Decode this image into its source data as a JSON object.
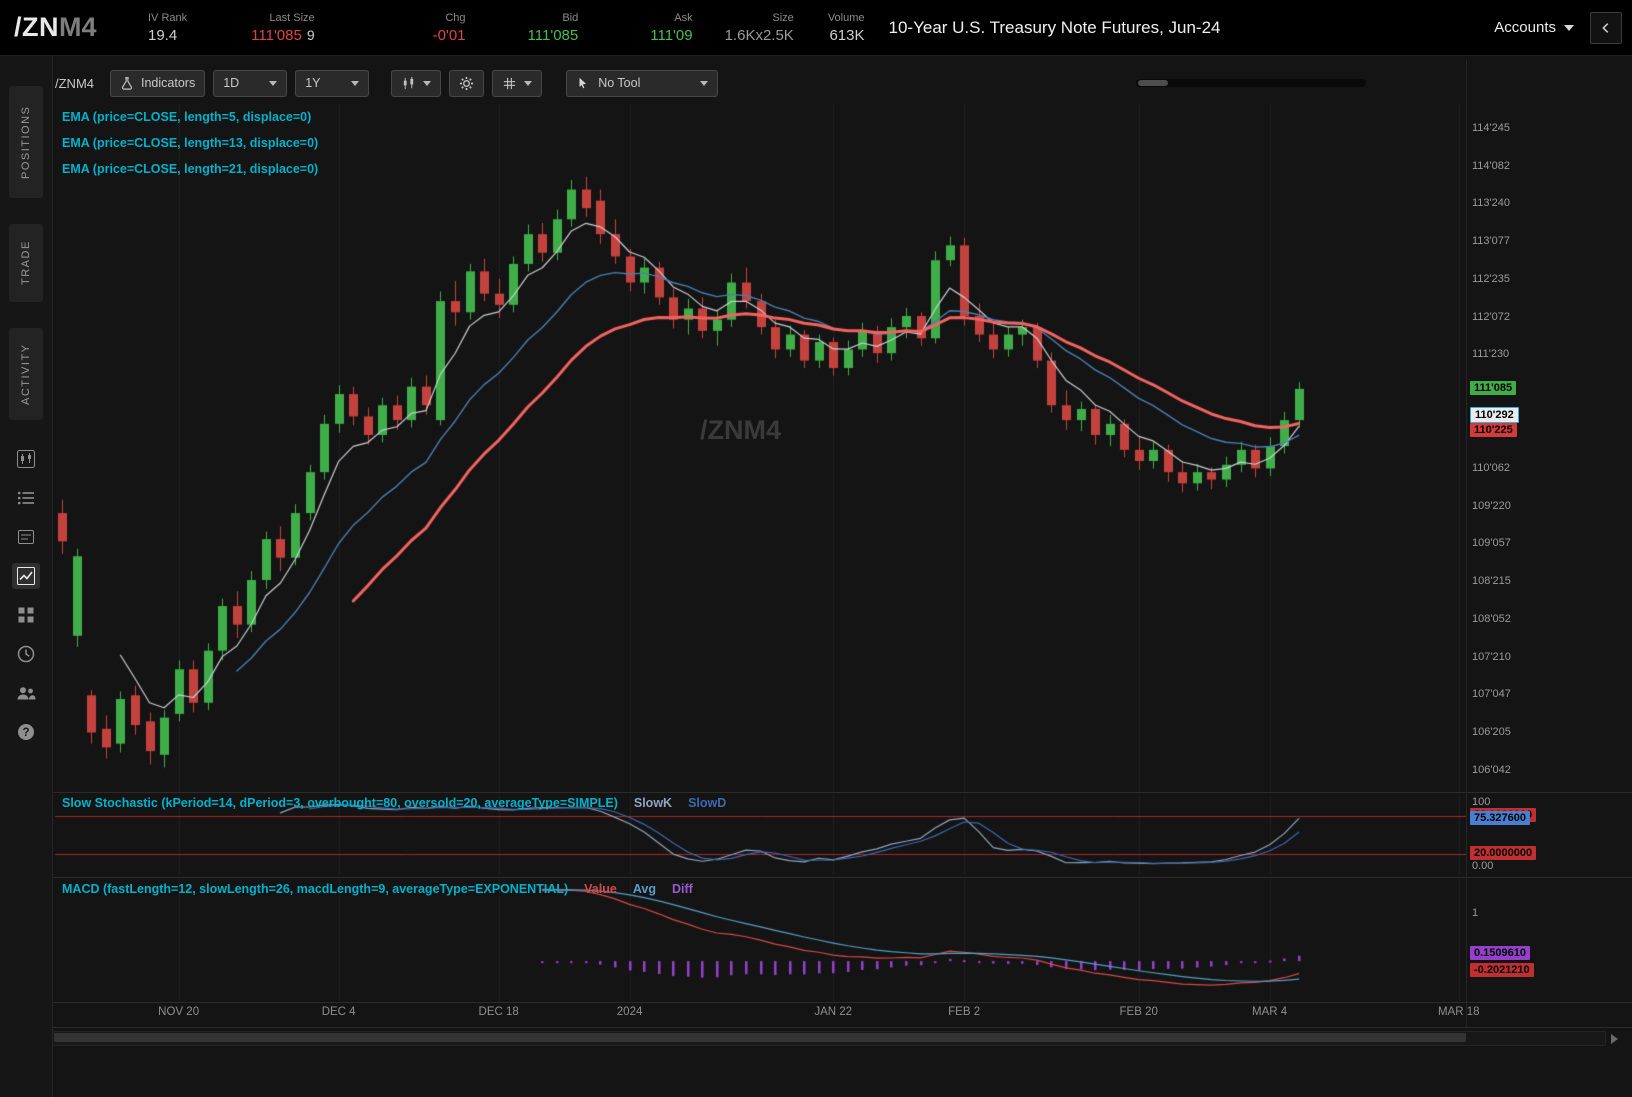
{
  "header": {
    "symbol": "/ZN",
    "symbol_suffix": "M4",
    "metrics": [
      {
        "label": "IV Rank",
        "value": "19.4",
        "color": "#cfcfcf"
      },
      {
        "label": "Last Size",
        "value": "111'085",
        "extra": "9",
        "color": "#e04545"
      },
      {
        "label": "Chg",
        "value": "-0'01",
        "color": "#e04545"
      },
      {
        "label": "Bid",
        "value": "111'085",
        "color": "#46c14e"
      },
      {
        "label": "Ask",
        "value": "111'09",
        "color": "#46c14e"
      },
      {
        "label": "Size",
        "value": "1.6Kx2.5K",
        "color": "#9a9a9a"
      },
      {
        "label": "Volume",
        "value": "613K",
        "color": "#cfcfcf"
      }
    ],
    "title": "10-Year U.S. Treasury Note Futures, Jun-24",
    "accounts_label": "Accounts"
  },
  "sidebar": {
    "tabs": [
      "POSITIONS",
      "TRADE",
      "ACTIVITY"
    ],
    "icons": [
      "chart",
      "watchlist",
      "trade-ticket",
      "active-chart",
      "apps-grid",
      "history-clock",
      "community",
      "help"
    ]
  },
  "toolbar": {
    "symbol": "/ZNM4",
    "indicators_label": "Indicators",
    "timeframe": "1D",
    "range": "1Y",
    "tool_label": "No Tool",
    "icons": [
      "flask",
      "chart-style-candles",
      "gear",
      "grid-drawings",
      "cursor"
    ]
  },
  "watermark": "/ZNM4",
  "studies": {
    "ema_labels": [
      "EMA (price=CLOSE, length=5, displace=0)",
      "EMA (price=CLOSE, length=13, displace=0)",
      "EMA (price=CLOSE, length=21, displace=0)"
    ],
    "stoch": {
      "label": "Slow Stochastic (kPeriod=14, dPeriod=3, overbought=80, oversold=20, averageType=SIMPLE)",
      "legend": [
        {
          "text": "SlowK",
          "color": "#8fa6c0"
        },
        {
          "text": "SlowD",
          "color": "#3e68b0"
        }
      ]
    },
    "macd": {
      "label": "MACD (fastLength=12, slowLength=26, macdLength=9, averageType=EXPONENTIAL)",
      "legend": [
        {
          "text": "Value",
          "color": "#d84848"
        },
        {
          "text": "Avg",
          "color": "#55a0c8"
        },
        {
          "text": "Diff",
          "color": "#9b59d0"
        }
      ]
    }
  },
  "colors": {
    "accent_cyan": "#00b2cc",
    "up_green": "#3fae49",
    "down_red": "#c4423d",
    "axis_text": "#9a9a9a"
  },
  "chart_data": {
    "type": "candlestick",
    "symbol": "/ZNM4",
    "description": "10-Year U.S. Treasury Note Futures, Jun-24, daily bars with EMA(5), EMA(13), EMA(21), Slow Stochastic and MACD",
    "up_color": "#3fae49",
    "down_color": "#c4423d",
    "total_slots": 97,
    "bars_ohlc": [
      [
        109.6,
        109.78,
        109.05,
        109.22
      ],
      [
        107.95,
        109.12,
        107.8,
        109.02
      ],
      [
        107.15,
        107.22,
        106.5,
        106.65
      ],
      [
        106.7,
        106.88,
        106.3,
        106.45
      ],
      [
        106.5,
        107.2,
        106.38,
        107.1
      ],
      [
        107.15,
        107.28,
        106.62,
        106.75
      ],
      [
        106.8,
        106.92,
        106.22,
        106.4
      ],
      [
        106.35,
        106.95,
        106.18,
        106.85
      ],
      [
        106.9,
        107.62,
        106.8,
        107.5
      ],
      [
        107.5,
        107.62,
        106.92,
        107.05
      ],
      [
        107.05,
        107.85,
        106.95,
        107.75
      ],
      [
        107.75,
        108.45,
        107.62,
        108.35
      ],
      [
        108.35,
        108.55,
        107.92,
        108.1
      ],
      [
        108.1,
        108.82,
        108.0,
        108.7
      ],
      [
        108.7,
        109.35,
        108.58,
        109.25
      ],
      [
        109.25,
        109.42,
        108.82,
        109.0
      ],
      [
        109.0,
        109.72,
        108.9,
        109.6
      ],
      [
        109.6,
        110.25,
        109.5,
        110.15
      ],
      [
        110.15,
        110.92,
        110.05,
        110.8
      ],
      [
        110.8,
        111.32,
        110.68,
        111.2
      ],
      [
        111.2,
        111.3,
        110.78,
        110.9
      ],
      [
        110.9,
        111.02,
        110.52,
        110.65
      ],
      [
        110.65,
        111.15,
        110.55,
        111.05
      ],
      [
        111.05,
        111.18,
        110.72,
        110.85
      ],
      [
        110.85,
        111.42,
        110.75,
        111.3
      ],
      [
        111.3,
        111.45,
        110.92,
        111.05
      ],
      [
        110.85,
        112.58,
        110.78,
        112.45
      ],
      [
        112.45,
        112.72,
        112.12,
        112.3
      ],
      [
        112.3,
        112.95,
        112.2,
        112.85
      ],
      [
        112.85,
        113.02,
        112.45,
        112.55
      ],
      [
        112.55,
        112.75,
        112.22,
        112.4
      ],
      [
        112.4,
        113.05,
        112.3,
        112.95
      ],
      [
        112.95,
        113.48,
        112.85,
        113.35
      ],
      [
        113.35,
        113.5,
        112.98,
        113.1
      ],
      [
        113.1,
        113.68,
        113.0,
        113.55
      ],
      [
        113.55,
        114.08,
        113.45,
        113.95
      ],
      [
        113.95,
        114.12,
        113.58,
        113.7
      ],
      [
        113.8,
        113.95,
        113.22,
        113.35
      ],
      [
        113.35,
        113.55,
        112.95,
        113.05
      ],
      [
        113.05,
        113.15,
        112.58,
        112.7
      ],
      [
        112.7,
        113.02,
        112.55,
        112.9
      ],
      [
        112.9,
        112.98,
        112.4,
        112.5
      ],
      [
        112.5,
        112.62,
        112.08,
        112.2
      ],
      [
        112.2,
        112.48,
        112.0,
        112.35
      ],
      [
        112.35,
        112.5,
        111.95,
        112.05
      ],
      [
        112.05,
        112.32,
        111.85,
        112.2
      ],
      [
        112.2,
        112.82,
        112.1,
        112.7
      ],
      [
        112.7,
        112.9,
        112.35,
        112.45
      ],
      [
        112.45,
        112.55,
        112.0,
        112.1
      ],
      [
        112.1,
        112.2,
        111.68,
        111.8
      ],
      [
        111.8,
        112.12,
        111.7,
        112.0
      ],
      [
        112.0,
        112.06,
        111.55,
        111.65
      ],
      [
        111.65,
        112.0,
        111.55,
        111.9
      ],
      [
        111.9,
        111.96,
        111.45,
        111.55
      ],
      [
        111.55,
        111.92,
        111.45,
        111.8
      ],
      [
        111.8,
        112.16,
        111.7,
        112.05
      ],
      [
        112.05,
        112.12,
        111.62,
        111.75
      ],
      [
        111.75,
        112.22,
        111.65,
        112.1
      ],
      [
        112.1,
        112.36,
        111.95,
        112.25
      ],
      [
        112.25,
        112.3,
        111.85,
        111.95
      ],
      [
        111.95,
        113.12,
        111.88,
        113.0
      ],
      [
        113.0,
        113.32,
        112.92,
        113.2
      ],
      [
        113.2,
        113.3,
        112.12,
        112.25
      ],
      [
        112.25,
        112.42,
        111.9,
        112.0
      ],
      [
        112.0,
        112.15,
        111.68,
        111.8
      ],
      [
        111.8,
        112.1,
        111.7,
        112.0
      ],
      [
        112.0,
        112.2,
        111.85,
        112.1
      ],
      [
        112.1,
        112.16,
        111.55,
        111.65
      ],
      [
        111.65,
        111.76,
        110.95,
        111.05
      ],
      [
        111.05,
        111.25,
        110.72,
        110.85
      ],
      [
        110.85,
        111.1,
        110.7,
        111.0
      ],
      [
        111.0,
        111.06,
        110.52,
        110.65
      ],
      [
        110.65,
        110.92,
        110.5,
        110.8
      ],
      [
        110.8,
        110.86,
        110.35,
        110.45
      ],
      [
        110.45,
        110.62,
        110.18,
        110.3
      ],
      [
        110.3,
        110.56,
        110.2,
        110.45
      ],
      [
        110.45,
        110.52,
        110.02,
        110.15
      ],
      [
        110.15,
        110.3,
        109.88,
        110.0
      ],
      [
        110.0,
        110.26,
        109.9,
        110.15
      ],
      [
        110.15,
        110.22,
        109.92,
        110.05
      ],
      [
        110.05,
        110.36,
        109.95,
        110.25
      ],
      [
        110.25,
        110.56,
        110.15,
        110.45
      ],
      [
        110.45,
        110.52,
        110.08,
        110.2
      ],
      [
        110.2,
        110.62,
        110.1,
        110.5
      ],
      [
        110.5,
        110.96,
        110.4,
        110.85
      ],
      [
        110.85,
        111.36,
        110.75,
        111.27
      ]
    ],
    "overlays": [
      {
        "name": "EMA-5",
        "length": 5,
        "color": "#c9ced4",
        "width": 1.2
      },
      {
        "name": "EMA-13",
        "length": 13,
        "color": "#4b7eb2",
        "width": 1.4
      },
      {
        "name": "EMA-21",
        "length": 21,
        "color": "#f2635f",
        "width": 3
      }
    ],
    "price_axis": {
      "min": 105.85,
      "max": 115.1,
      "labels": [
        {
          "text": "114'245",
          "price": 114.7656
        },
        {
          "text": "114'082",
          "price": 114.2578
        },
        {
          "text": "113'240",
          "price": 113.75
        },
        {
          "text": "113'077",
          "price": 113.2422
        },
        {
          "text": "112'235",
          "price": 112.7344
        },
        {
          "text": "112'072",
          "price": 112.2266
        },
        {
          "text": "111'230",
          "price": 111.7188
        },
        {
          "text": "110'062",
          "price": 110.1953
        },
        {
          "text": "109'220",
          "price": 109.6875
        },
        {
          "text": "109'057",
          "price": 109.1797
        },
        {
          "text": "108'215",
          "price": 108.6719
        },
        {
          "text": "108'052",
          "price": 108.1641
        },
        {
          "text": "107'210",
          "price": 107.6563
        },
        {
          "text": "107'047",
          "price": 107.1484
        },
        {
          "text": "106'205",
          "price": 106.6406
        },
        {
          "text": "106'042",
          "price": 106.1328
        }
      ],
      "badges": [
        {
          "text": "111'085",
          "price": 111.2656,
          "bg": "#3fae49"
        },
        {
          "text": "110'292",
          "price": 110.9141,
          "bg": "#e6ecf0",
          "border": "#39aed0"
        },
        {
          "text": "110'225",
          "price": 110.7031,
          "bg": "#d33a3a"
        }
      ]
    },
    "time_ticks": [
      {
        "label": "NOV 20",
        "slot": 8
      },
      {
        "label": "DEC 4",
        "slot": 19
      },
      {
        "label": "DEC 18",
        "slot": 30
      },
      {
        "label": "2024",
        "slot": 39
      },
      {
        "label": "JAN 22",
        "slot": 53
      },
      {
        "label": "FEB 2",
        "slot": 62
      },
      {
        "label": "FEB 20",
        "slot": 74
      },
      {
        "label": "MAR 4",
        "slot": 83
      },
      {
        "label": "MAR 18",
        "slot": 96
      }
    ],
    "stochastic": {
      "k_period": 14,
      "d_period": 3,
      "overbought": 80,
      "oversold": 20,
      "level_color": "#aa2424",
      "k_color": "#8fa6c0",
      "d_color": "#3e68b0",
      "axis_labels": [
        {
          "text": "100",
          "value": 100
        },
        {
          "text": "0.00",
          "value": 0
        }
      ],
      "badges": [
        {
          "text": "80.0000000",
          "value": 80,
          "bg": "#c03030"
        },
        {
          "text": "75.327600",
          "value": 75.33,
          "bg": "#4a7fd0"
        },
        {
          "text": "20.0000000",
          "value": 20,
          "bg": "#c03030"
        }
      ]
    },
    "macd": {
      "fast": 12,
      "slow": 26,
      "signal": 9,
      "range": [
        -0.85,
        1.75
      ],
      "value_color": "#d84848",
      "avg_color": "#55a0c8",
      "diff_color": "#9440cc",
      "axis_labels": [
        {
          "text": "1",
          "value": 1
        }
      ],
      "badges": [
        {
          "text": "0.1509610",
          "value": 0.151,
          "bg": "#9440cc"
        },
        {
          "text": "-0.2021210",
          "value": -0.202,
          "bg": "#c03030"
        }
      ]
    }
  }
}
